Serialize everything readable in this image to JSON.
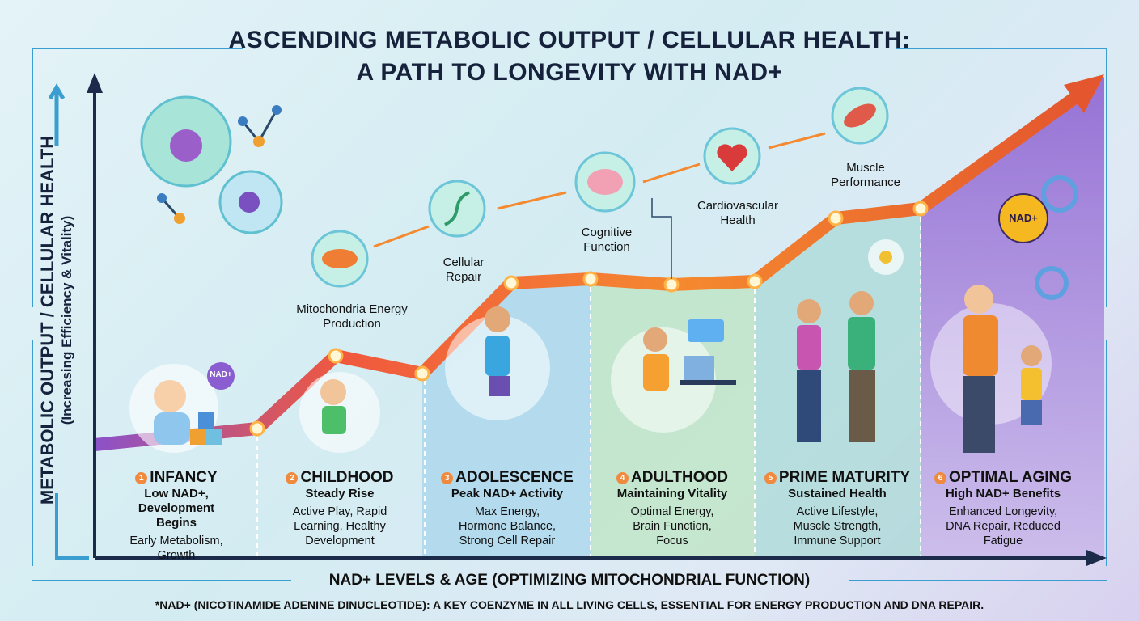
{
  "title": {
    "line1": "ASCENDING METABOLIC OUTPUT / CELLULAR HEALTH:",
    "line2": "A PATH TO LONGEVITY WITH NAD+"
  },
  "y_axis": {
    "label": "METABOLIC OUTPUT / CELLULAR HEALTH",
    "sublabel": "(Increasing Efficiency & Vitality)"
  },
  "x_axis": {
    "label": "NAD+ LEVELS & AGE (OPTIMIZING MITOCHONDRIAL FUNCTION)"
  },
  "footnote": "*NAD+ (NICOTINAMIDE ADENINE DINUCLEOTIDE): A KEY COENZYME IN ALL LIVING CELLS, ESSENTIAL FOR ENERGY PRODUCTION AND DNA REPAIR.",
  "badges": {
    "infant_bubble": "NAD+",
    "aging_gear": "NAD+"
  },
  "benefits": [
    {
      "label": "Mitochondria Energy Production",
      "icon": "mitochondria-icon"
    },
    {
      "label": "Cellular Repair",
      "icon": "dna-icon"
    },
    {
      "label": "Cognitive Function",
      "icon": "brain-icon"
    },
    {
      "label": "Cardiovascular Health",
      "icon": "heart-icon"
    },
    {
      "label": "Muscle Performance",
      "icon": "muscle-icon"
    }
  ],
  "stages": [
    {
      "num": "1",
      "title": "INFANCY",
      "subtitle": "Low NAD+, Development Begins",
      "details": "Early Metabolism, Growth"
    },
    {
      "num": "2",
      "title": "CHILDHOOD",
      "subtitle": "Steady Rise",
      "details": "Active Play, Rapid Learning, Healthy Development"
    },
    {
      "num": "3",
      "title": "ADOLESCENCE",
      "subtitle": "Peak NAD+ Activity",
      "details": "Max Energy, Hormone Balance, Strong Cell Repair"
    },
    {
      "num": "4",
      "title": "ADULTHOOD",
      "subtitle": "Maintaining Vitality",
      "details": "Optimal Energy, Brain Function, Focus"
    },
    {
      "num": "5",
      "title": "PRIME MATURITY",
      "subtitle": "Sustained Health",
      "details": "Active Lifestyle, Muscle Strength, Immune Support"
    },
    {
      "num": "6",
      "title": "OPTIMAL AGING",
      "subtitle": "High NAD+ Benefits",
      "details": "Enhanced Longevity, DNA Repair, Reduced Fatigue"
    }
  ],
  "colors": {
    "axis": "#1c2b4a",
    "path": "#f07a3a",
    "accent": "#ef8a3e",
    "aging_bg": "#8b64cc"
  }
}
